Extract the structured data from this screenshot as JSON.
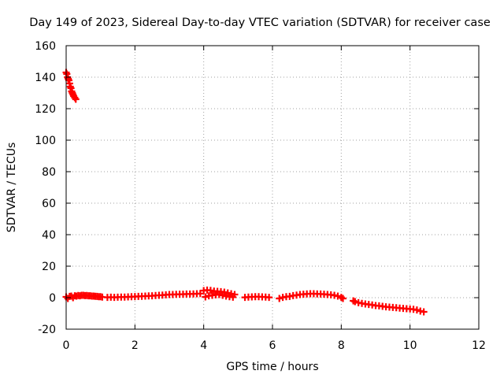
{
  "chart_data": {
    "type": "scatter",
    "title": "Day 149 of 2023, Sidereal Day-to-day VTEC variation (SDTVAR) for receiver case",
    "xlabel": "GPS time / hours",
    "ylabel": "SDTVAR / TECUs",
    "xlim": [
      0,
      12
    ],
    "ylim": [
      -20,
      160
    ],
    "xticks": [
      0,
      2,
      4,
      6,
      8,
      10,
      12
    ],
    "yticks": [
      -20,
      0,
      20,
      40,
      60,
      80,
      100,
      120,
      140,
      160
    ],
    "grid": true,
    "marker": "plus",
    "color": "#ff0000",
    "series": [
      {
        "points": [
          [
            0.0,
            143
          ],
          [
            0.02,
            142
          ],
          [
            0.04,
            140
          ],
          [
            0.06,
            139
          ],
          [
            0.08,
            138
          ],
          [
            0.1,
            136
          ],
          [
            0.12,
            134
          ],
          [
            0.14,
            133
          ],
          [
            0.16,
            131
          ],
          [
            0.18,
            130
          ],
          [
            0.2,
            129
          ],
          [
            0.22,
            128
          ],
          [
            0.25,
            127
          ],
          [
            0.28,
            126
          ],
          [
            0.0,
            0.5
          ],
          [
            0.05,
            -0.5
          ],
          [
            0.1,
            0.8
          ],
          [
            0.15,
            1.0
          ],
          [
            0.2,
            0.0
          ],
          [
            0.25,
            1.2
          ],
          [
            0.3,
            1.0
          ],
          [
            0.35,
            1.4
          ],
          [
            0.4,
            1.2
          ],
          [
            0.45,
            1.5
          ],
          [
            0.5,
            1.5
          ],
          [
            0.55,
            1.3
          ],
          [
            0.6,
            1.4
          ],
          [
            0.65,
            1.2
          ],
          [
            0.7,
            1.2
          ],
          [
            0.75,
            1.0
          ],
          [
            0.8,
            1.0
          ],
          [
            0.85,
            0.9
          ],
          [
            0.9,
            0.8
          ],
          [
            0.95,
            0.6
          ],
          [
            1.0,
            0.6
          ],
          [
            1.05,
            0.4
          ],
          [
            1.2,
            0.2
          ],
          [
            1.3,
            0.3
          ],
          [
            1.4,
            0.2
          ],
          [
            1.5,
            0.3
          ],
          [
            1.6,
            0.4
          ],
          [
            1.7,
            0.4
          ],
          [
            1.8,
            0.5
          ],
          [
            1.9,
            0.6
          ],
          [
            2.0,
            0.7
          ],
          [
            2.1,
            0.8
          ],
          [
            2.2,
            0.9
          ],
          [
            2.3,
            1.0
          ],
          [
            2.4,
            1.1
          ],
          [
            2.5,
            1.2
          ],
          [
            2.6,
            1.4
          ],
          [
            2.7,
            1.5
          ],
          [
            2.8,
            1.6
          ],
          [
            2.9,
            1.8
          ],
          [
            3.0,
            2.0
          ],
          [
            3.1,
            2.0
          ],
          [
            3.2,
            2.1
          ],
          [
            3.3,
            2.2
          ],
          [
            3.4,
            2.2
          ],
          [
            3.5,
            2.3
          ],
          [
            3.6,
            2.3
          ],
          [
            3.7,
            2.4
          ],
          [
            3.8,
            2.5
          ],
          [
            3.9,
            2.6
          ],
          [
            4.0,
            4.5
          ],
          [
            4.1,
            4.8
          ],
          [
            4.2,
            4.6
          ],
          [
            4.3,
            4.2
          ],
          [
            4.4,
            4.0
          ],
          [
            4.5,
            3.8
          ],
          [
            4.6,
            3.5
          ],
          [
            4.7,
            3.0
          ],
          [
            4.8,
            2.5
          ],
          [
            4.9,
            2.0
          ],
          [
            4.05,
            0.5
          ],
          [
            4.15,
            1.2
          ],
          [
            4.25,
            1.5
          ],
          [
            4.35,
            1.8
          ],
          [
            4.45,
            2.0
          ],
          [
            4.55,
            1.5
          ],
          [
            4.65,
            1.0
          ],
          [
            4.75,
            0.6
          ],
          [
            4.85,
            0.3
          ],
          [
            5.2,
            0.2
          ],
          [
            5.3,
            0.4
          ],
          [
            5.4,
            0.5
          ],
          [
            5.5,
            0.6
          ],
          [
            5.6,
            0.6
          ],
          [
            5.7,
            0.5
          ],
          [
            5.8,
            0.4
          ],
          [
            5.9,
            0.2
          ],
          [
            6.2,
            -0.5
          ],
          [
            6.3,
            0.2
          ],
          [
            6.4,
            0.6
          ],
          [
            6.5,
            0.8
          ],
          [
            6.6,
            1.3
          ],
          [
            6.7,
            1.6
          ],
          [
            6.8,
            2.0
          ],
          [
            6.9,
            2.2
          ],
          [
            7.0,
            2.4
          ],
          [
            7.1,
            2.5
          ],
          [
            7.2,
            2.5
          ],
          [
            7.3,
            2.4
          ],
          [
            7.4,
            2.3
          ],
          [
            7.5,
            2.2
          ],
          [
            7.6,
            2.0
          ],
          [
            7.7,
            1.8
          ],
          [
            7.8,
            1.5
          ],
          [
            7.9,
            1.0
          ],
          [
            8.0,
            0.2
          ],
          [
            8.05,
            -0.5
          ],
          [
            8.35,
            -2.0
          ],
          [
            8.4,
            -2.5
          ],
          [
            8.5,
            -3.2
          ],
          [
            8.6,
            -3.6
          ],
          [
            8.7,
            -4.0
          ],
          [
            8.8,
            -4.3
          ],
          [
            8.9,
            -4.6
          ],
          [
            9.0,
            -5.0
          ],
          [
            9.1,
            -5.2
          ],
          [
            9.2,
            -5.5
          ],
          [
            9.3,
            -5.8
          ],
          [
            9.4,
            -6.0
          ],
          [
            9.5,
            -6.2
          ],
          [
            9.6,
            -6.4
          ],
          [
            9.7,
            -6.6
          ],
          [
            9.8,
            -6.8
          ],
          [
            9.9,
            -7.0
          ],
          [
            10.0,
            -7.2
          ],
          [
            10.1,
            -7.4
          ],
          [
            10.2,
            -7.8
          ],
          [
            10.3,
            -8.5
          ],
          [
            10.4,
            -9.0
          ]
        ]
      }
    ]
  }
}
